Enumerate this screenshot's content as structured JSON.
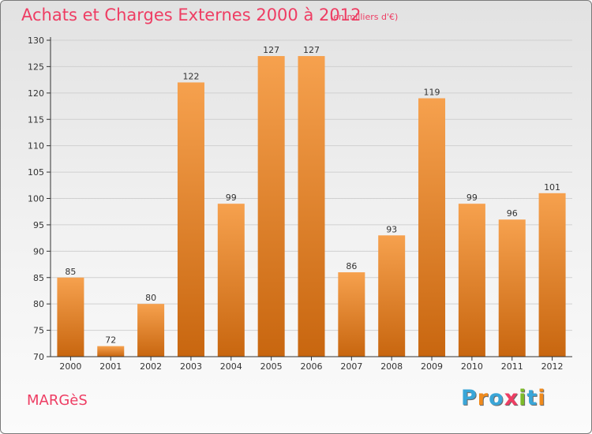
{
  "header": {
    "title": "Achats et Charges Externes 2000 à 2012",
    "subtitle": "(en milliers d'€)"
  },
  "footer": {
    "commune": "MARGèS",
    "logo_text": "Proxiti",
    "logo_colors": [
      "#3aa6d8",
      "#f08a1c",
      "#3aa6d8",
      "#ee3d63",
      "#7dbb2a",
      "#3aa6d8",
      "#f08a1c"
    ]
  },
  "colors": {
    "bar_top": "#f6a14e",
    "bar_bottom": "#c8660f",
    "title": "#ee3d63",
    "axis": "#333333"
  },
  "chart_data": {
    "type": "bar",
    "categories": [
      "2000",
      "2001",
      "2002",
      "2003",
      "2004",
      "2005",
      "2006",
      "2007",
      "2008",
      "2009",
      "2010",
      "2011",
      "2012"
    ],
    "values": [
      85,
      72,
      80,
      122,
      99,
      127,
      127,
      86,
      93,
      119,
      99,
      96,
      101
    ],
    "title": "Achats et Charges Externes 2000 à 2012",
    "xlabel": "",
    "ylabel": "",
    "ylim": [
      70,
      130
    ],
    "yticks": [
      70,
      75,
      80,
      85,
      90,
      95,
      100,
      105,
      110,
      115,
      120,
      125,
      130
    ],
    "grid": true,
    "data_labels": true
  }
}
